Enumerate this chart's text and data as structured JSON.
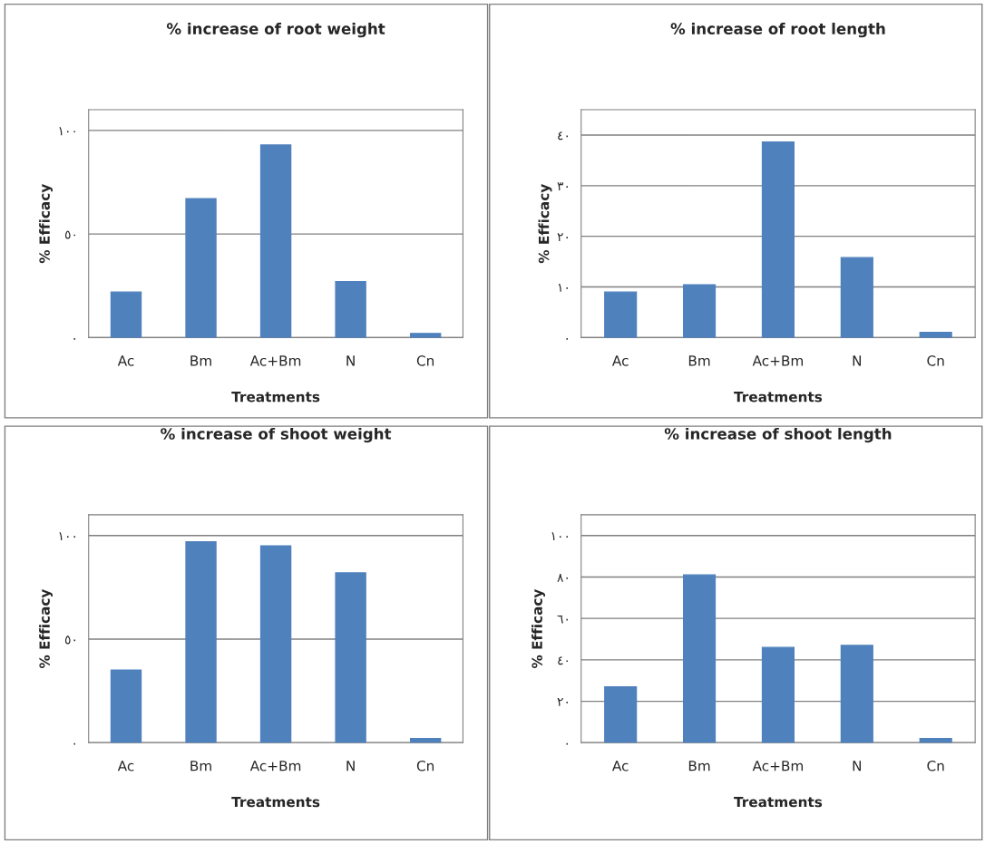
{
  "chart_data": [
    {
      "type": "bar",
      "title": "% increase of root weight",
      "xlabel": "Treatments",
      "ylabel": "% Efficacy",
      "categories": [
        "Ac",
        "Bm",
        "Ac+Bm",
        "N",
        "Cn"
      ],
      "values": [
        22,
        67,
        93,
        27,
        2
      ],
      "color": "#4f81bd",
      "ylim": [
        0,
        110
      ],
      "yticks": [
        {
          "value": 0,
          "label": "٠"
        },
        {
          "value": 50,
          "label": "٥٠"
        },
        {
          "value": 100,
          "label": "١٠٠"
        }
      ],
      "grid": "y"
    },
    {
      "type": "bar",
      "title": "% increase of root length",
      "xlabel": "Treatments",
      "ylabel": "% Efficacy",
      "categories": [
        "Ac",
        "Bm",
        "Ac+Bm",
        "N",
        "Cn"
      ],
      "values": [
        9,
        10.4,
        38.6,
        15.8,
        1
      ],
      "color": "#4f81bd",
      "ylim": [
        0,
        45
      ],
      "yticks": [
        {
          "value": 0,
          "label": "٠"
        },
        {
          "value": 10,
          "label": "١٠"
        },
        {
          "value": 20,
          "label": "٢٠"
        },
        {
          "value": 30,
          "label": "٣٠"
        },
        {
          "value": 40,
          "label": "٤٠"
        }
      ],
      "grid": "y"
    },
    {
      "type": "bar",
      "title": "% increase of shoot weight",
      "xlabel": "Treatments",
      "ylabel": "% Efficacy",
      "categories": [
        "Ac",
        "Bm",
        "Ac+Bm",
        "N",
        "Cn"
      ],
      "values": [
        35,
        97,
        95,
        82,
        2
      ],
      "color": "#4f81bd",
      "ylim": [
        0,
        110
      ],
      "yticks": [
        {
          "value": 0,
          "label": "٠"
        },
        {
          "value": 50,
          "label": "٥٠"
        },
        {
          "value": 100,
          "label": "١٠٠"
        }
      ],
      "grid": "y"
    },
    {
      "type": "bar",
      "title": "% increase of shoot length",
      "xlabel": "Treatments",
      "ylabel": "% Efficacy",
      "categories": [
        "Ac",
        "Bm",
        "Ac+Bm",
        "N",
        "Cn"
      ],
      "values": [
        27,
        81,
        46,
        47,
        2
      ],
      "color": "#4f81bd",
      "ylim": [
        0,
        110
      ],
      "yticks": [
        {
          "value": 0,
          "label": "٠"
        },
        {
          "value": 20,
          "label": "٢٠"
        },
        {
          "value": 40,
          "label": "٤٠"
        },
        {
          "value": 60,
          "label": "٦٠"
        },
        {
          "value": 80,
          "label": "٨٠"
        },
        {
          "value": 100,
          "label": "١٠٠"
        }
      ],
      "grid": "y"
    }
  ]
}
